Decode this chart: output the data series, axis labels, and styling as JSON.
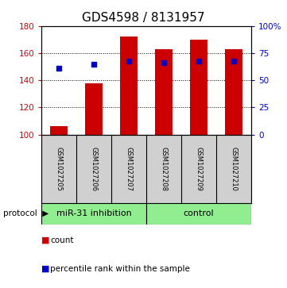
{
  "title": "GDS4598 / 8131957",
  "samples": [
    "GSM1027205",
    "GSM1027206",
    "GSM1027207",
    "GSM1027208",
    "GSM1027209",
    "GSM1027210"
  ],
  "counts": [
    106,
    138,
    172,
    163,
    170,
    163
  ],
  "percentiles": [
    61,
    65,
    68,
    66,
    68,
    68
  ],
  "ylim_left": [
    100,
    180
  ],
  "ylim_right": [
    0,
    100
  ],
  "yticks_left": [
    100,
    120,
    140,
    160,
    180
  ],
  "yticks_right": [
    0,
    25,
    50,
    75,
    100
  ],
  "ytick_labels_right": [
    "0",
    "25",
    "50",
    "75",
    "100%"
  ],
  "bar_color": "#cc0000",
  "square_color": "#0000cc",
  "group1_label": "miR-31 inhibition",
  "group2_label": "control",
  "group1_color": "#90ee90",
  "group2_color": "#90ee90",
  "protocol_label": "protocol",
  "legend_count_label": "count",
  "legend_pct_label": "percentile rank within the sample",
  "background_color": "#ffffff",
  "plot_bg_color": "#d0d0d0",
  "bar_width": 0.5,
  "base_value": 100,
  "title_fontsize": 11
}
